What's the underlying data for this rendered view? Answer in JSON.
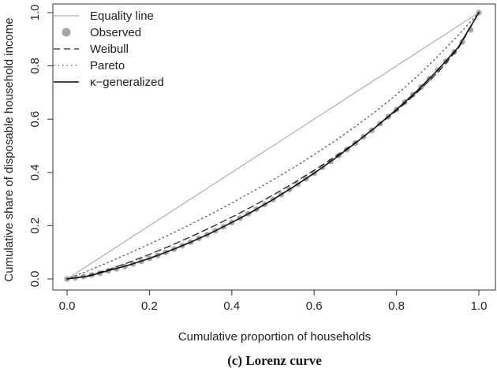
{
  "chart_data": {
    "type": "line",
    "xlabel": "Cumulative proportion of households",
    "ylabel": "Cumulative share of disposable household income",
    "caption": "(c) Lorenz curve",
    "xlim": [
      0,
      1
    ],
    "ylim": [
      0,
      1
    ],
    "x_ticks": [
      "0.0",
      "0.2",
      "0.4",
      "0.6",
      "0.8",
      "1.0"
    ],
    "y_ticks": [
      "0.0",
      "0.2",
      "0.4",
      "0.6",
      "0.8",
      "1.0"
    ],
    "grid": false,
    "legend_position": "top-left",
    "series": [
      {
        "name": "Equality line",
        "style": "solid-thin",
        "color": "#9e9e9e",
        "x": [
          0,
          1
        ],
        "y": [
          0,
          1
        ]
      },
      {
        "name": "Observed",
        "style": "points",
        "color": "#a6a6a6",
        "x": [
          0.0,
          0.02,
          0.04,
          0.06,
          0.08,
          0.1,
          0.12,
          0.14,
          0.16,
          0.18,
          0.2,
          0.22,
          0.24,
          0.26,
          0.28,
          0.3,
          0.32,
          0.34,
          0.36,
          0.38,
          0.4,
          0.42,
          0.44,
          0.46,
          0.48,
          0.5,
          0.52,
          0.54,
          0.56,
          0.58,
          0.6,
          0.62,
          0.64,
          0.66,
          0.68,
          0.7,
          0.72,
          0.74,
          0.76,
          0.78,
          0.8,
          0.82,
          0.84,
          0.86,
          0.88,
          0.9,
          0.92,
          0.94,
          0.96,
          0.98,
          1.0
        ],
        "y": [
          0.0,
          0.004,
          0.009,
          0.015,
          0.022,
          0.03,
          0.038,
          0.047,
          0.056,
          0.066,
          0.077,
          0.088,
          0.1,
          0.112,
          0.125,
          0.138,
          0.152,
          0.166,
          0.181,
          0.196,
          0.212,
          0.228,
          0.245,
          0.262,
          0.28,
          0.298,
          0.317,
          0.336,
          0.356,
          0.376,
          0.397,
          0.419,
          0.441,
          0.463,
          0.486,
          0.51,
          0.534,
          0.558,
          0.583,
          0.609,
          0.636,
          0.663,
          0.692,
          0.721,
          0.752,
          0.784,
          0.817,
          0.852,
          0.89,
          0.935,
          1.0
        ]
      },
      {
        "name": "Weibull",
        "style": "dashed",
        "color": "#222222",
        "x": [
          0.0,
          0.05,
          0.1,
          0.15,
          0.2,
          0.25,
          0.3,
          0.35,
          0.4,
          0.45,
          0.5,
          0.55,
          0.6,
          0.65,
          0.7,
          0.75,
          0.8,
          0.85,
          0.9,
          0.95,
          1.0
        ],
        "y": [
          0.0,
          0.012,
          0.035,
          0.062,
          0.092,
          0.124,
          0.158,
          0.194,
          0.232,
          0.272,
          0.315,
          0.36,
          0.408,
          0.458,
          0.512,
          0.57,
          0.632,
          0.7,
          0.775,
          0.865,
          1.0
        ]
      },
      {
        "name": "Pareto",
        "style": "dotted",
        "color": "#555555",
        "x": [
          0.0,
          0.05,
          0.1,
          0.15,
          0.2,
          0.25,
          0.3,
          0.35,
          0.4,
          0.45,
          0.5,
          0.55,
          0.6,
          0.65,
          0.7,
          0.75,
          0.8,
          0.85,
          0.9,
          0.95,
          1.0
        ],
        "y": [
          0.0,
          0.03,
          0.062,
          0.096,
          0.131,
          0.167,
          0.205,
          0.244,
          0.285,
          0.328,
          0.372,
          0.418,
          0.467,
          0.518,
          0.572,
          0.63,
          0.692,
          0.76,
          0.835,
          0.915,
          1.0
        ]
      },
      {
        "name": "κ−generalized",
        "style": "solid",
        "color": "#111111",
        "x": [
          0.0,
          0.05,
          0.1,
          0.15,
          0.2,
          0.25,
          0.3,
          0.35,
          0.4,
          0.45,
          0.5,
          0.55,
          0.6,
          0.65,
          0.7,
          0.75,
          0.8,
          0.85,
          0.9,
          0.95,
          1.0
        ],
        "y": [
          0.0,
          0.01,
          0.031,
          0.052,
          0.077,
          0.106,
          0.138,
          0.173,
          0.212,
          0.253,
          0.298,
          0.346,
          0.397,
          0.452,
          0.51,
          0.571,
          0.636,
          0.706,
          0.784,
          0.87,
          1.0
        ]
      }
    ]
  }
}
